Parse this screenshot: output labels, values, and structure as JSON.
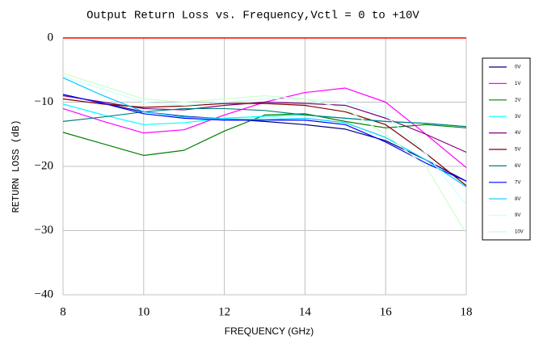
{
  "chart_data": {
    "type": "line",
    "title": "Output Return Loss vs. Frequency,Vctl = 0 to +10V",
    "xlabel": "FREQUENCY (GHz)",
    "ylabel": "RETURN LOSS (dB)",
    "x": [
      8,
      9,
      10,
      11,
      12,
      13,
      14,
      15,
      16,
      17,
      18
    ],
    "xlim": [
      8,
      18
    ],
    "xticks": [
      8,
      10,
      12,
      14,
      16,
      18
    ],
    "ylim": [
      -40,
      0
    ],
    "yticks": [
      {
        "value": -40,
        "label": "−40"
      },
      {
        "value": -30,
        "label": "−30"
      },
      {
        "value": -20,
        "label": "−20"
      },
      {
        "value": -10,
        "label": "−10"
      },
      0
    ],
    "grid": true,
    "legend": "right",
    "series": [
      {
        "name": "0V",
        "color": "#000080",
        "values": [
          -8.8,
          -10.2,
          -11.5,
          -12.2,
          -12.6,
          -13.0,
          -13.5,
          -14.2,
          -16.0,
          -19.0,
          -22.3
        ]
      },
      {
        "name": "1V",
        "color": "#ff00ff",
        "values": [
          -11.0,
          -13.0,
          -14.8,
          -14.3,
          -12.0,
          -10.0,
          -8.5,
          -7.8,
          -10.0,
          -15.0,
          -20.2
        ]
      },
      {
        "name": "2V",
        "color": "#008000",
        "values": [
          -14.7,
          -16.5,
          -18.3,
          -17.5,
          -14.5,
          -12.0,
          -11.8,
          -13.0,
          -14.0,
          -13.5,
          -14.0
        ]
      },
      {
        "name": "3V",
        "color": "#00ffff",
        "values": [
          -10.3,
          -12.0,
          -13.5,
          -13.2,
          -12.5,
          -12.2,
          -12.0,
          -12.5,
          -13.0,
          -13.3,
          -13.8
        ]
      },
      {
        "name": "4V",
        "color": "#800080",
        "values": [
          -9.0,
          -10.0,
          -11.0,
          -11.2,
          -10.5,
          -10.0,
          -10.2,
          -10.5,
          -12.5,
          -15.0,
          -17.8
        ]
      },
      {
        "name": "5V",
        "color": "#800000",
        "values": [
          -9.5,
          -10.3,
          -10.8,
          -10.6,
          -10.2,
          -10.2,
          -10.5,
          -11.5,
          -13.5,
          -18.0,
          -23.0
        ]
      },
      {
        "name": "6V",
        "color": "#008080",
        "values": [
          -13.0,
          -12.3,
          -11.5,
          -11.0,
          -11.0,
          -11.3,
          -12.0,
          -12.5,
          -13.0,
          -13.3,
          -13.8
        ]
      },
      {
        "name": "7V",
        "color": "#0000ff",
        "values": [
          -8.8,
          -10.2,
          -11.8,
          -12.5,
          -12.8,
          -12.8,
          -12.8,
          -13.5,
          -16.2,
          -19.5,
          -22.3
        ]
      },
      {
        "name": "8V",
        "color": "#00ccff",
        "values": [
          -6.2,
          -9.0,
          -11.5,
          -12.3,
          -12.6,
          -12.7,
          -12.5,
          -13.2,
          -15.5,
          -19.0,
          -23.2
        ]
      },
      {
        "name": "9V",
        "color": "#ccffff",
        "values": [
          -6.0,
          -8.0,
          -10.0,
          -10.5,
          -10.0,
          -9.5,
          -9.5,
          -10.0,
          -12.0,
          -18.0,
          -26.0
        ]
      },
      {
        "name": "10V",
        "color": "#ccffcc",
        "values": [
          -5.5,
          -7.5,
          -9.5,
          -10.0,
          -9.5,
          -9.0,
          -9.5,
          -11.0,
          -15.0,
          -20.0,
          -30.5
        ]
      }
    ]
  }
}
